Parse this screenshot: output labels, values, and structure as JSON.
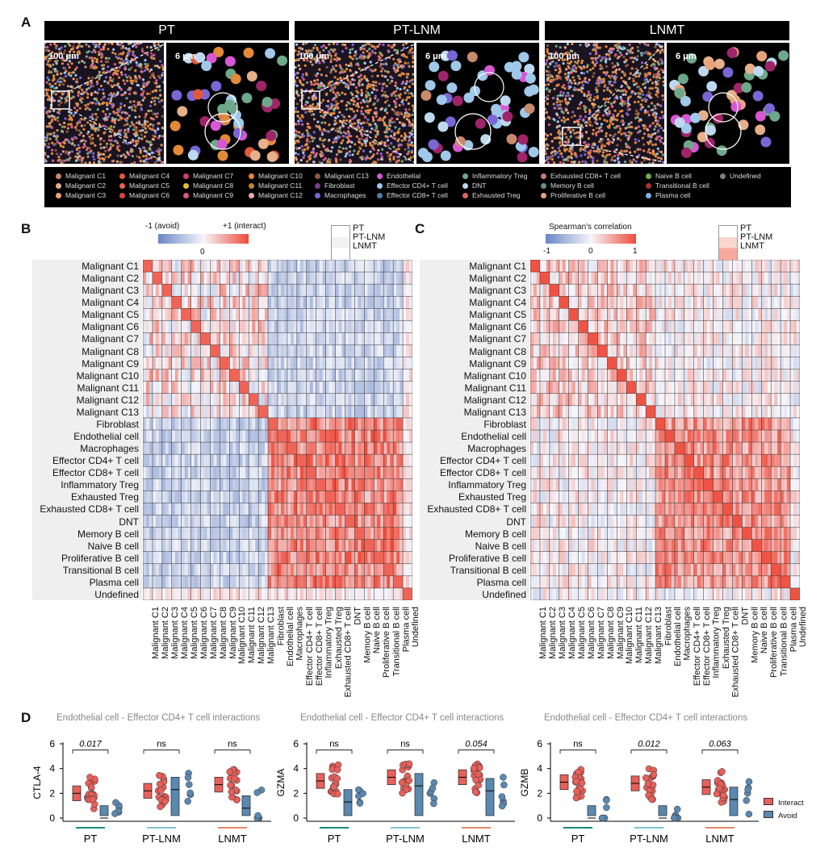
{
  "panels": {
    "a": "A",
    "b": "B",
    "c": "C",
    "d": "D"
  },
  "panelA": {
    "groups": [
      {
        "title": "PT",
        "overview_scale": "100 μm",
        "zoom_scale": "6 μm"
      },
      {
        "title": "PT-LNM",
        "overview_scale": "100 μm",
        "zoom_scale": "6 μm"
      },
      {
        "title": "LNMT",
        "overview_scale": "100 μm",
        "zoom_scale": "6 μm"
      }
    ],
    "legend": [
      {
        "label": "Malignant C1",
        "color": "#c98a6b"
      },
      {
        "label": "Malignant C2",
        "color": "#e5b08a"
      },
      {
        "label": "Malignant C3",
        "color": "#e9a37b"
      },
      {
        "label": "Malignant C4",
        "color": "#e05a3a"
      },
      {
        "label": "Malignant C5",
        "color": "#e8605a"
      },
      {
        "label": "Malignant C6",
        "color": "#d9434b"
      },
      {
        "label": "Malignant C7",
        "color": "#d63b78"
      },
      {
        "label": "Malignant C8",
        "color": "#e4c02c"
      },
      {
        "label": "Malignant C9",
        "color": "#d85b8c"
      },
      {
        "label": "Malignant C10",
        "color": "#e3893a"
      },
      {
        "label": "Malignant C11",
        "color": "#b8872f"
      },
      {
        "label": "Malignant C12",
        "color": "#eaa6b6"
      },
      {
        "label": "Malignant C13",
        "color": "#8c5a3c"
      },
      {
        "label": "Fibroblast",
        "color": "#7a3e8a"
      },
      {
        "label": "Macrophages",
        "color": "#7b66d6"
      },
      {
        "label": "Endothelial",
        "color": "#d957d3"
      },
      {
        "label": "Effector CD4+ T cell",
        "color": "#9fc8ea"
      },
      {
        "label": "Effector CD8+ T cell",
        "color": "#4f7da8"
      },
      {
        "label": "Inflammatory Treg",
        "color": "#6ea88a"
      },
      {
        "label": "DNT",
        "color": "#bcd9ef"
      },
      {
        "label": "Exhausted Treg",
        "color": "#d66a5a"
      },
      {
        "label": "Exhausted CD8+ T cell",
        "color": "#c87a6c"
      },
      {
        "label": "Memory B cell",
        "color": "#6b8f8b"
      },
      {
        "label": "Proliferative B cell",
        "color": "#e7a089"
      },
      {
        "label": "Naive B cell",
        "color": "#6fae4a"
      },
      {
        "label": "Transitional B cell",
        "color": "#a7342c"
      },
      {
        "label": "Plasma cell",
        "color": "#7fb2e0"
      },
      {
        "label": "Undefined",
        "color": "#7a7f7a"
      }
    ]
  },
  "panelB": {
    "colorbar_left": "-1 (avoid)",
    "colorbar_right": "+1 (interact)",
    "colorbar_mid": "0",
    "key": [
      "PT",
      "PT-LNM",
      "LNMT"
    ]
  },
  "panelC": {
    "colorbar_title": "Spearman's correlation",
    "ticks": [
      "-1",
      "0",
      "1"
    ],
    "key": [
      "PT",
      "PT-LNM",
      "LNMT"
    ]
  },
  "cell_types": [
    "Malignant C1",
    "Malignant C2",
    "Malignant C3",
    "Malignant C4",
    "Malignant C5",
    "Malignant C6",
    "Malignant C7",
    "Malignant C8",
    "Malignant C9",
    "Malignant C10",
    "Malignant C11",
    "Malignant C12",
    "Malignant C13",
    "Fibroblast",
    "Endothelial cell",
    "Macrophages",
    "Effector CD4+ T cell",
    "Effector CD8+ T cell",
    "Inflammatory Treg",
    "Exhausted Treg",
    "Exhausted CD8+ T cell",
    "DNT",
    "Memory B cell",
    "Naive B cell",
    "Proliferative B cell",
    "Transitional B cell",
    "Plasma cell",
    "Undefined"
  ],
  "panelD": {
    "title": "Endothelial cell - Effector CD4+ T cell interactions",
    "groups": [
      "PT",
      "PT-LNM",
      "LNMT"
    ],
    "group_colors": [
      "#1a8a7a",
      "#7cc6c9",
      "#e38a6a"
    ],
    "legend": [
      {
        "label": "Interact",
        "color": "#e8605a"
      },
      {
        "label": "Avoid",
        "color": "#5a88b0"
      }
    ],
    "yticks": [
      "6",
      "4",
      "2",
      "0"
    ]
  },
  "chart_data": [
    {
      "type": "box",
      "title": "Endothelial cell - Effector CD4+ T cell interactions",
      "ylabel": "CTLA-4",
      "ylim": [
        0,
        6
      ],
      "categories": [
        "PT",
        "PT-LNM",
        "LNMT"
      ],
      "series": [
        {
          "name": "Interact",
          "median": [
            2.0,
            2.2,
            2.7
          ]
        },
        {
          "name": "Avoid",
          "median": [
            0.0,
            2.3,
            0.8
          ]
        }
      ],
      "annotations": [
        "0.017",
        "ns",
        "ns"
      ]
    },
    {
      "type": "box",
      "title": "Endothelial cell - Effector CD4+ T cell interactions",
      "ylabel": "GZMA",
      "ylim": [
        0,
        6
      ],
      "categories": [
        "PT",
        "PT-LNM",
        "LNMT"
      ],
      "series": [
        {
          "name": "Interact",
          "median": [
            3.0,
            3.3,
            3.3
          ]
        },
        {
          "name": "Avoid",
          "median": [
            1.3,
            2.6,
            2.2
          ]
        }
      ],
      "annotations": [
        "ns",
        "ns",
        "0.054"
      ]
    },
    {
      "type": "box",
      "title": "Endothelial cell - Effector CD4+ T cell interactions",
      "ylabel": "GZMB",
      "ylim": [
        0,
        6
      ],
      "categories": [
        "PT",
        "PT-LNM",
        "LNMT"
      ],
      "series": [
        {
          "name": "Interact",
          "median": [
            2.9,
            2.8,
            2.5
          ]
        },
        {
          "name": "Avoid",
          "median": [
            0.0,
            0.0,
            1.5
          ]
        }
      ],
      "annotations": [
        "ns",
        "0.012",
        "0.063"
      ]
    }
  ]
}
